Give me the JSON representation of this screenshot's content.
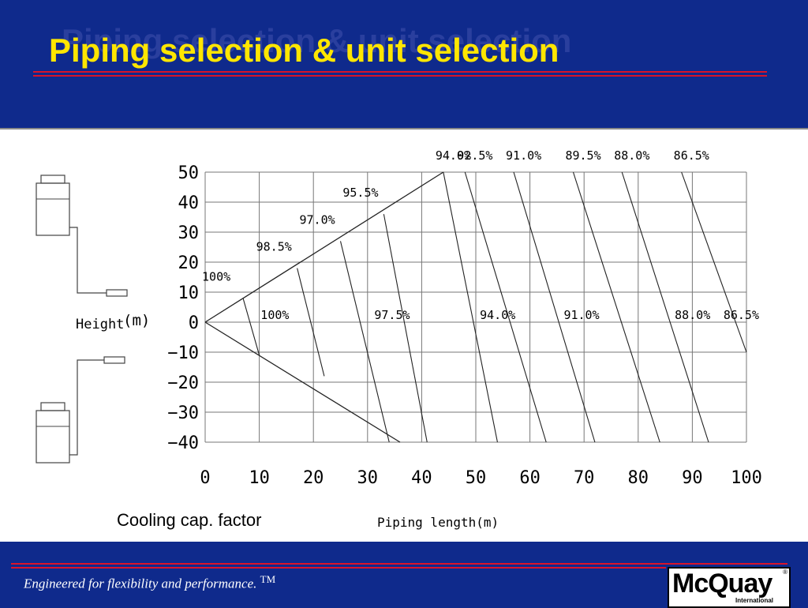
{
  "slide": {
    "title_first": "Piping",
    "title_rest": " selection & unit selection",
    "ghost_title": "Piping selection & unit selection",
    "caption": "Cooling cap. factor",
    "footer": "Engineered for flexibility and performance.",
    "trademark": "TM",
    "logo_name": "McQuay",
    "logo_sub": "International",
    "logo_reg": "®"
  },
  "colors": {
    "background": "#0f2a8c",
    "title": "#ffe600",
    "rule": "#d8142a",
    "panel": "#ffffff"
  },
  "chart_data": {
    "type": "line",
    "xlabel": "Piping length(m)",
    "ylabel": "Height",
    "ylabel_unit": "(m)",
    "xlim": [
      0,
      100
    ],
    "ylim": [
      -40,
      50
    ],
    "grid": true,
    "x_ticks": [
      "0",
      "10",
      "20",
      "30",
      "40",
      "50",
      "60",
      "70",
      "80",
      "90",
      "100"
    ],
    "y_ticks": [
      "50",
      "40",
      "30",
      "20",
      "10",
      "0",
      "−10",
      "−20",
      "−30",
      "−40"
    ],
    "boundary": [
      {
        "name": "upper",
        "points": [
          [
            0,
            0
          ],
          [
            44,
            50
          ]
        ]
      },
      {
        "name": "lower",
        "points": [
          [
            0,
            0
          ],
          [
            36,
            -40
          ]
        ]
      }
    ],
    "series": [
      {
        "label_top": "100%",
        "label_bottom": "100%",
        "top": [
          7,
          8
        ],
        "bottom": [
          10,
          -11
        ]
      },
      {
        "label_top": "98.5%",
        "label_bottom": "",
        "top": [
          17,
          18
        ],
        "bottom": [
          22,
          -18
        ]
      },
      {
        "label_top": "97.0%",
        "label_bottom": "97.5%",
        "top": [
          25,
          27
        ],
        "bottom": [
          34,
          -40
        ]
      },
      {
        "label_top": "95.5%",
        "label_bottom": "",
        "top": [
          33,
          36
        ],
        "bottom": [
          41,
          -40
        ]
      },
      {
        "label_top": "94.0%",
        "label_bottom": "94.0%",
        "top": [
          44,
          50
        ],
        "bottom": [
          54,
          -40
        ]
      },
      {
        "label_top": "92.5%",
        "label_bottom": "",
        "top": [
          48,
          50
        ],
        "bottom": [
          63,
          -40
        ]
      },
      {
        "label_top": "91.0%",
        "label_bottom": "91.0%",
        "top": [
          57,
          50
        ],
        "bottom": [
          72,
          -40
        ]
      },
      {
        "label_top": "89.5%",
        "label_bottom": "",
        "top": [
          68,
          50
        ],
        "bottom": [
          84,
          -40
        ]
      },
      {
        "label_top": "88.0%",
        "label_bottom": "88.0%",
        "top": [
          77,
          50
        ],
        "bottom": [
          93,
          -40
        ]
      },
      {
        "label_top": "86.5%",
        "label_bottom": "86.5%",
        "top": [
          88,
          50
        ],
        "bottom": [
          100,
          -10
        ]
      }
    ]
  }
}
